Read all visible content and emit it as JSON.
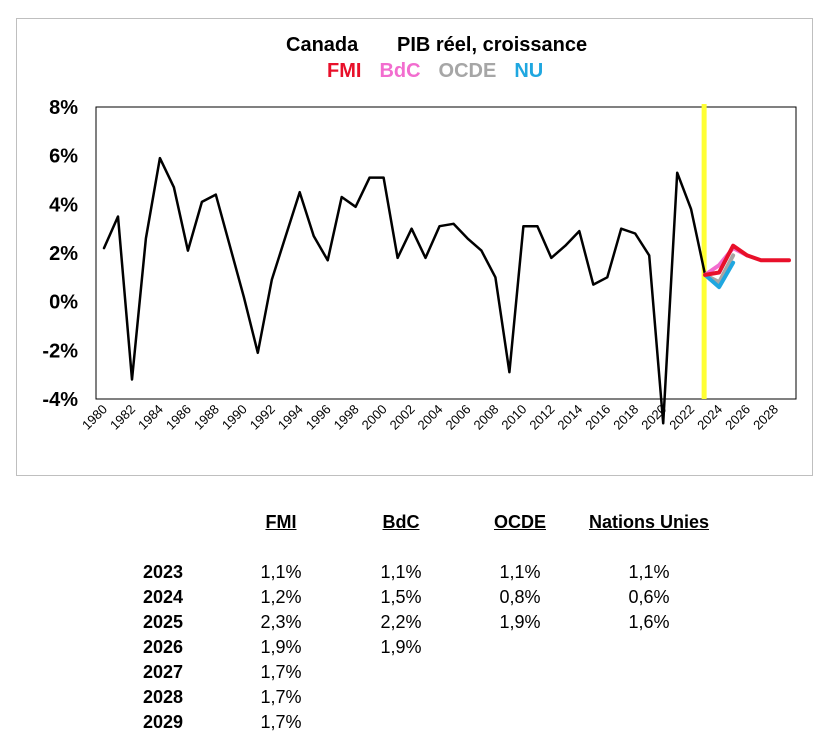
{
  "chart_data": {
    "type": "line",
    "title": "Canada",
    "subtitle": "PIB réel, croissance",
    "legend": [
      {
        "name": "FMI",
        "color": "#e8102a"
      },
      {
        "name": "BdC",
        "color": "#f26dcf"
      },
      {
        "name": "OCDE",
        "color": "#a6a6a6"
      },
      {
        "name": "NU",
        "color": "#1fa7e0"
      }
    ],
    "ylim": [
      -4,
      8
    ],
    "y_ticks": [
      "8%",
      "6%",
      "4%",
      "2%",
      "0%",
      "-2%",
      "-4%"
    ],
    "x_ticks": [
      "1980",
      "1982",
      "1984",
      "1986",
      "1988",
      "1990",
      "1992",
      "1994",
      "1996",
      "1998",
      "2000",
      "2002",
      "2004",
      "2006",
      "2008",
      "2010",
      "2012",
      "2014",
      "2016",
      "2018",
      "2020",
      "2022",
      "2024",
      "2026",
      "2028"
    ],
    "xlim": [
      1980,
      2029
    ],
    "vertical_marker": {
      "x": 2023,
      "color": "#ffff33"
    },
    "grid": false,
    "series": [
      {
        "name": "",
        "color": "#000000",
        "x": [
          1980,
          1981,
          1982,
          1983,
          1984,
          1985,
          1986,
          1987,
          1988,
          1989,
          1990,
          1991,
          1992,
          1993,
          1994,
          1995,
          1996,
          1997,
          1998,
          1999,
          2000,
          2001,
          2002,
          2003,
          2004,
          2005,
          2006,
          2007,
          2008,
          2009,
          2010,
          2011,
          2012,
          2013,
          2014,
          2015,
          2016,
          2017,
          2018,
          2019,
          2020,
          2021,
          2022,
          2023
        ],
        "values": [
          2.2,
          3.5,
          -3.2,
          2.6,
          5.9,
          4.7,
          2.1,
          4.1,
          4.4,
          2.3,
          0.2,
          -2.1,
          0.9,
          2.7,
          4.5,
          2.7,
          1.7,
          4.3,
          3.9,
          5.1,
          5.1,
          1.8,
          3.0,
          1.8,
          3.1,
          3.2,
          2.6,
          2.1,
          1.0,
          -2.9,
          3.1,
          3.1,
          1.8,
          2.3,
          2.9,
          0.7,
          1.0,
          3.0,
          2.8,
          1.9,
          -5.0,
          5.3,
          3.8,
          1.1
        ]
      },
      {
        "name": "OCDE",
        "color": "#a6a6a6",
        "x": [
          2023,
          2024,
          2025
        ],
        "values": [
          1.1,
          0.8,
          1.9
        ]
      },
      {
        "name": "NU",
        "color": "#1fa7e0",
        "x": [
          2023,
          2024,
          2025
        ],
        "values": [
          1.1,
          0.6,
          1.6
        ]
      },
      {
        "name": "BdC",
        "color": "#f26dcf",
        "x": [
          2023,
          2024,
          2025,
          2026
        ],
        "values": [
          1.1,
          1.5,
          2.2,
          1.9
        ]
      },
      {
        "name": "FMI",
        "color": "#e8102a",
        "x": [
          2023,
          2024,
          2025,
          2026,
          2027,
          2028,
          2029
        ],
        "values": [
          1.1,
          1.2,
          2.3,
          1.9,
          1.7,
          1.7,
          1.7
        ]
      }
    ]
  },
  "table": {
    "headers": [
      "FMI",
      "BdC",
      "OCDE",
      "Nations Unies"
    ],
    "rows": [
      {
        "year": "2023",
        "cells": [
          "1,1%",
          "1,1%",
          "1,1%",
          "1,1%"
        ]
      },
      {
        "year": "2024",
        "cells": [
          "1,2%",
          "1,5%",
          "0,8%",
          "0,6%"
        ]
      },
      {
        "year": "2025",
        "cells": [
          "2,3%",
          "2,2%",
          "1,9%",
          "1,6%"
        ]
      },
      {
        "year": "2026",
        "cells": [
          "1,9%",
          "1,9%",
          "",
          ""
        ]
      },
      {
        "year": "2027",
        "cells": [
          "1,7%",
          "",
          "",
          ""
        ]
      },
      {
        "year": "2028",
        "cells": [
          "1,7%",
          "",
          "",
          ""
        ]
      },
      {
        "year": "2029",
        "cells": [
          "1,7%",
          "",
          "",
          ""
        ]
      }
    ]
  }
}
